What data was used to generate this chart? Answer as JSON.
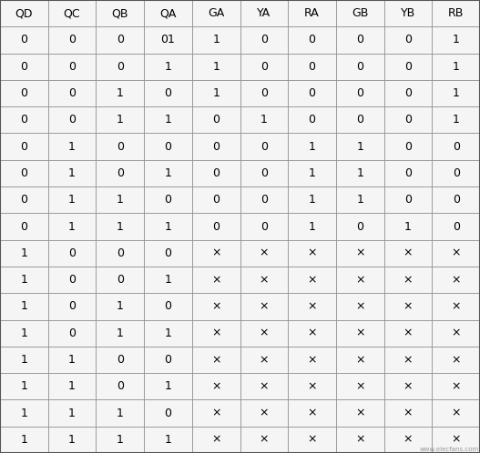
{
  "headers": [
    "QD",
    "QC",
    "QB",
    "QA",
    "GA",
    "YA",
    "RA",
    "GB",
    "YB",
    "RB"
  ],
  "rows": [
    [
      "0",
      "0",
      "0",
      "01",
      "1",
      "0",
      "0",
      "0",
      "0",
      "1"
    ],
    [
      "0",
      "0",
      "0",
      "1",
      "1",
      "0",
      "0",
      "0",
      "0",
      "1"
    ],
    [
      "0",
      "0",
      "1",
      "0",
      "1",
      "0",
      "0",
      "0",
      "0",
      "1"
    ],
    [
      "0",
      "0",
      "1",
      "1",
      "0",
      "1",
      "0",
      "0",
      "0",
      "1"
    ],
    [
      "0",
      "1",
      "0",
      "0",
      "0",
      "0",
      "1",
      "1",
      "0",
      "0"
    ],
    [
      "0",
      "1",
      "0",
      "1",
      "0",
      "0",
      "1",
      "1",
      "0",
      "0"
    ],
    [
      "0",
      "1",
      "1",
      "0",
      "0",
      "0",
      "1",
      "1",
      "0",
      "0"
    ],
    [
      "0",
      "1",
      "1",
      "1",
      "0",
      "0",
      "1",
      "0",
      "1",
      "0"
    ],
    [
      "1",
      "0",
      "0",
      "0",
      "×",
      "×",
      "×",
      "×",
      "×",
      "×"
    ],
    [
      "1",
      "0",
      "0",
      "1",
      "×",
      "×",
      "×",
      "×",
      "×",
      "×"
    ],
    [
      "1",
      "0",
      "1",
      "0",
      "×",
      "×",
      "×",
      "×",
      "×",
      "×"
    ],
    [
      "1",
      "0",
      "1",
      "1",
      "×",
      "×",
      "×",
      "×",
      "×",
      "×"
    ],
    [
      "1",
      "1",
      "0",
      "0",
      "×",
      "×",
      "×",
      "×",
      "×",
      "×"
    ],
    [
      "1",
      "1",
      "0",
      "1",
      "×",
      "×",
      "×",
      "×",
      "×",
      "×"
    ],
    [
      "1",
      "1",
      "1",
      "0",
      "×",
      "×",
      "×",
      "×",
      "×",
      "×"
    ],
    [
      "1",
      "1",
      "1",
      "1",
      "×",
      "×",
      "×",
      "×",
      "×",
      "×"
    ]
  ],
  "bg_color": "#f0f0f0",
  "cell_bg": "#f5f5f5",
  "border_color": "#888888",
  "outer_border_color": "#555555",
  "header_fontsize": 9,
  "cell_fontsize": 9,
  "watermark": "www.elecfans.com",
  "watermark_fontsize": 5,
  "fig_width": 5.27,
  "fig_height": 4.98,
  "dpi": 100
}
